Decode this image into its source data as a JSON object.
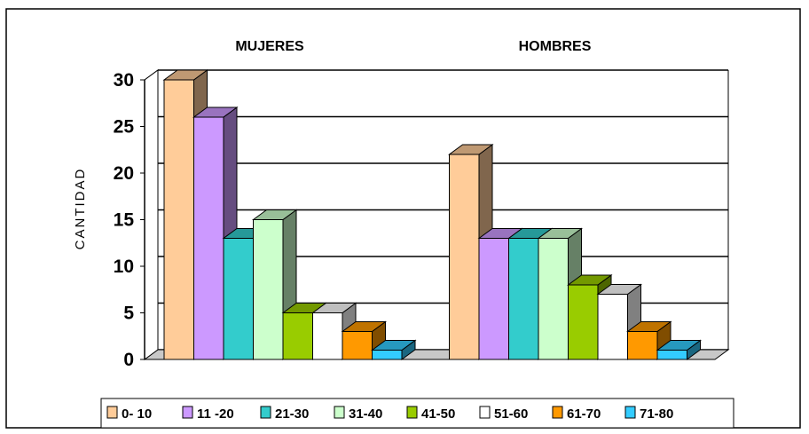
{
  "chart_data": {
    "type": "bar",
    "categories": [
      "MUJERES",
      "HOMBRES"
    ],
    "series": [
      {
        "name": "0- 10",
        "values": [
          30,
          22
        ],
        "color": "#FFCC99"
      },
      {
        "name": "11 -20",
        "values": [
          26,
          13
        ],
        "color": "#CC99FF"
      },
      {
        "name": "21-30",
        "values": [
          13,
          13
        ],
        "color": "#33CCCC"
      },
      {
        "name": "31-40",
        "values": [
          15,
          13
        ],
        "color": "#CCFFCC"
      },
      {
        "name": "41-50",
        "values": [
          5,
          8
        ],
        "color": "#99CC00"
      },
      {
        "name": "51-60",
        "values": [
          5,
          7
        ],
        "color": "#FFFFFF"
      },
      {
        "name": "61-70",
        "values": [
          3,
          3
        ],
        "color": "#FF9900"
      },
      {
        "name": "71-80",
        "values": [
          1,
          1
        ],
        "color": "#33CCFF"
      }
    ],
    "ylabel": "CANTIDAD",
    "yticks": [
      "0",
      "5",
      "10",
      "15",
      "20",
      "25",
      "30"
    ],
    "ylim": [
      0,
      30
    ],
    "grid": true,
    "legend": "bottom",
    "style": "3d-column"
  }
}
